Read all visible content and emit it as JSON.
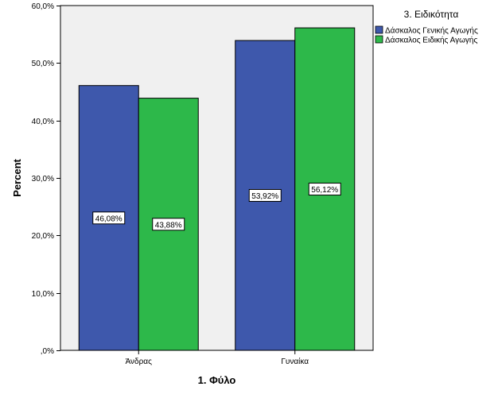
{
  "chart_data": {
    "type": "bar",
    "title": "",
    "xlabel": "1. Φύλο",
    "ylabel": "Percent",
    "categories": [
      "Άνδρας",
      "Γυναίκα"
    ],
    "series": [
      {
        "name": "Δάσκαλος Γενικής Αγωγής",
        "values": [
          46.08,
          53.92
        ],
        "labels": [
          "46,08%",
          "53,92%"
        ],
        "color": "#3E58AC"
      },
      {
        "name": "Δάσκαλος Ειδικής Αγωγής",
        "values": [
          43.88,
          56.12
        ],
        "labels": [
          "43,88%",
          "56,12%"
        ],
        "color": "#2DB84A"
      }
    ],
    "ylim": [
      0,
      60
    ],
    "yticks": [
      0,
      10,
      20,
      30,
      40,
      50,
      60
    ],
    "ytick_labels": [
      ",0%",
      "10,0%",
      "20,0%",
      "30,0%",
      "40,0%",
      "50,0%",
      "60,0%"
    ],
    "legend": {
      "title": "3. Ειδικότητα",
      "placement": "right"
    },
    "grid": false,
    "plot_background": "#F0F0F0"
  }
}
